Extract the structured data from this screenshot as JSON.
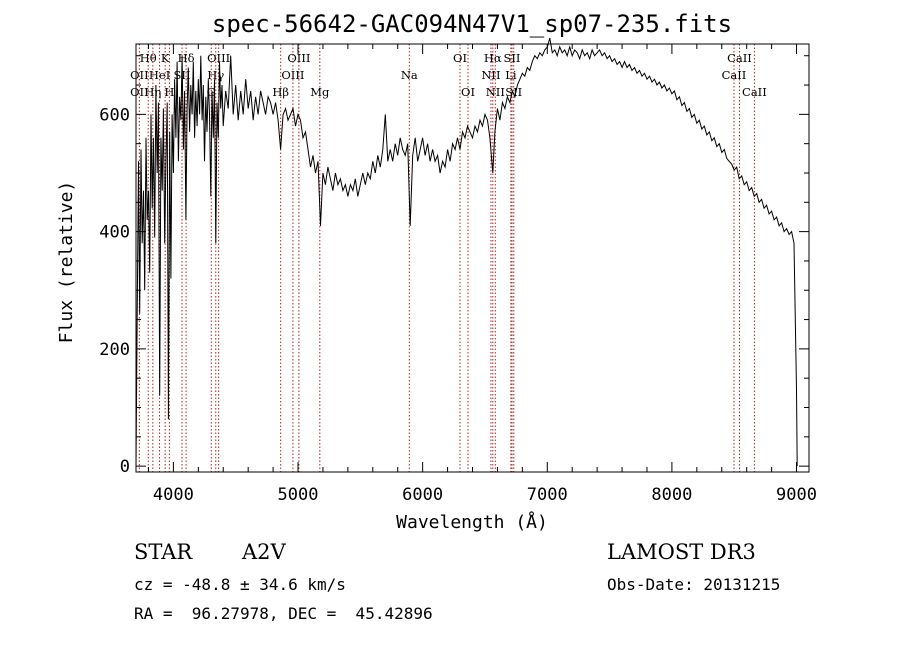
{
  "chart_data": {
    "type": "line",
    "title": "spec-56642-GAC094N47V1_sp07-235.fits",
    "xlabel": "Wavelength (Å)",
    "ylabel": "Flux (relative)",
    "xlim": [
      3700,
      9100
    ],
    "ylim": [
      -10,
      720
    ],
    "x_ticks": [
      4000,
      5000,
      6000,
      7000,
      8000,
      9000
    ],
    "y_ticks": [
      0,
      200,
      400,
      600
    ],
    "grid": false,
    "spectrum": [
      [
        3700,
        0
      ],
      [
        3710,
        260
      ],
      [
        3720,
        520
      ],
      [
        3730,
        260
      ],
      [
        3740,
        540
      ],
      [
        3750,
        380
      ],
      [
        3760,
        470
      ],
      [
        3770,
        300
      ],
      [
        3780,
        560
      ],
      [
        3790,
        420
      ],
      [
        3800,
        470
      ],
      [
        3810,
        330
      ],
      [
        3820,
        600
      ],
      [
        3830,
        440
      ],
      [
        3840,
        560
      ],
      [
        3850,
        390
      ],
      [
        3860,
        650
      ],
      [
        3870,
        500
      ],
      [
        3880,
        620
      ],
      [
        3890,
        120
      ],
      [
        3900,
        560
      ],
      [
        3910,
        470
      ],
      [
        3920,
        610
      ],
      [
        3930,
        380
      ],
      [
        3940,
        520
      ],
      [
        3950,
        620
      ],
      [
        3960,
        80
      ],
      [
        3970,
        570
      ],
      [
        3980,
        320
      ],
      [
        3990,
        600
      ],
      [
        4000,
        500
      ],
      [
        4010,
        660
      ],
      [
        4020,
        560
      ],
      [
        4030,
        690
      ],
      [
        4040,
        520
      ],
      [
        4050,
        630
      ],
      [
        4060,
        590
      ],
      [
        4070,
        700
      ],
      [
        4080,
        540
      ],
      [
        4090,
        640
      ],
      [
        4100,
        420
      ],
      [
        4110,
        610
      ],
      [
        4120,
        680
      ],
      [
        4130,
        570
      ],
      [
        4140,
        650
      ],
      [
        4150,
        600
      ],
      [
        4160,
        690
      ],
      [
        4170,
        560
      ],
      [
        4180,
        640
      ],
      [
        4190,
        580
      ],
      [
        4200,
        660
      ],
      [
        4210,
        600
      ],
      [
        4220,
        700
      ],
      [
        4230,
        590
      ],
      [
        4240,
        650
      ],
      [
        4250,
        520
      ],
      [
        4260,
        630
      ],
      [
        4270,
        570
      ],
      [
        4280,
        660
      ],
      [
        4290,
        600
      ],
      [
        4300,
        460
      ],
      [
        4310,
        640
      ],
      [
        4320,
        560
      ],
      [
        4330,
        660
      ],
      [
        4340,
        380
      ],
      [
        4350,
        620
      ],
      [
        4360,
        560
      ],
      [
        4370,
        690
      ],
      [
        4380,
        610
      ],
      [
        4390,
        650
      ],
      [
        4400,
        580
      ],
      [
        4420,
        640
      ],
      [
        4440,
        610
      ],
      [
        4460,
        700
      ],
      [
        4480,
        600
      ],
      [
        4500,
        650
      ],
      [
        4520,
        590
      ],
      [
        4540,
        640
      ],
      [
        4560,
        600
      ],
      [
        4580,
        660
      ],
      [
        4600,
        610
      ],
      [
        4620,
        640
      ],
      [
        4640,
        590
      ],
      [
        4660,
        630
      ],
      [
        4680,
        600
      ],
      [
        4700,
        640
      ],
      [
        4720,
        620
      ],
      [
        4740,
        600
      ],
      [
        4760,
        630
      ],
      [
        4780,
        620
      ],
      [
        4800,
        600
      ],
      [
        4820,
        620
      ],
      [
        4840,
        590
      ],
      [
        4860,
        540
      ],
      [
        4880,
        600
      ],
      [
        4900,
        610
      ],
      [
        4920,
        590
      ],
      [
        4940,
        600
      ],
      [
        4960,
        610
      ],
      [
        4980,
        580
      ],
      [
        5000,
        600
      ],
      [
        5020,
        590
      ],
      [
        5040,
        560
      ],
      [
        5060,
        570
      ],
      [
        5080,
        540
      ],
      [
        5100,
        510
      ],
      [
        5120,
        530
      ],
      [
        5140,
        500
      ],
      [
        5160,
        520
      ],
      [
        5180,
        410
      ],
      [
        5200,
        500
      ],
      [
        5220,
        480
      ],
      [
        5240,
        510
      ],
      [
        5260,
        490
      ],
      [
        5280,
        470
      ],
      [
        5300,
        500
      ],
      [
        5320,
        480
      ],
      [
        5340,
        490
      ],
      [
        5360,
        470
      ],
      [
        5380,
        480
      ],
      [
        5400,
        460
      ],
      [
        5420,
        480
      ],
      [
        5440,
        470
      ],
      [
        5460,
        490
      ],
      [
        5480,
        460
      ],
      [
        5500,
        480
      ],
      [
        5520,
        500
      ],
      [
        5540,
        480
      ],
      [
        5560,
        500
      ],
      [
        5580,
        490
      ],
      [
        5600,
        520
      ],
      [
        5620,
        500
      ],
      [
        5640,
        530
      ],
      [
        5660,
        510
      ],
      [
        5680,
        540
      ],
      [
        5700,
        600
      ],
      [
        5720,
        520
      ],
      [
        5740,
        540
      ],
      [
        5760,
        520
      ],
      [
        5780,
        550
      ],
      [
        5800,
        530
      ],
      [
        5820,
        560
      ],
      [
        5840,
        540
      ],
      [
        5860,
        530
      ],
      [
        5880,
        550
      ],
      [
        5900,
        410
      ],
      [
        5920,
        530
      ],
      [
        5940,
        560
      ],
      [
        5960,
        520
      ],
      [
        5980,
        540
      ],
      [
        6000,
        560
      ],
      [
        6020,
        530
      ],
      [
        6040,
        550
      ],
      [
        6060,
        520
      ],
      [
        6080,
        540
      ],
      [
        6100,
        520
      ],
      [
        6120,
        530
      ],
      [
        6140,
        500
      ],
      [
        6160,
        520
      ],
      [
        6180,
        510
      ],
      [
        6200,
        540
      ],
      [
        6220,
        520
      ],
      [
        6240,
        550
      ],
      [
        6260,
        540
      ],
      [
        6280,
        560
      ],
      [
        6300,
        540
      ],
      [
        6320,
        570
      ],
      [
        6340,
        560
      ],
      [
        6360,
        580
      ],
      [
        6380,
        570
      ],
      [
        6400,
        560
      ],
      [
        6420,
        580
      ],
      [
        6440,
        570
      ],
      [
        6460,
        590
      ],
      [
        6480,
        580
      ],
      [
        6500,
        600
      ],
      [
        6520,
        590
      ],
      [
        6540,
        560
      ],
      [
        6563,
        500
      ],
      [
        6580,
        570
      ],
      [
        6600,
        610
      ],
      [
        6620,
        590
      ],
      [
        6640,
        620
      ],
      [
        6660,
        610
      ],
      [
        6680,
        630
      ],
      [
        6700,
        620
      ],
      [
        6720,
        640
      ],
      [
        6740,
        630
      ],
      [
        6760,
        650
      ],
      [
        6780,
        660
      ],
      [
        6800,
        670
      ],
      [
        6820,
        665
      ],
      [
        6840,
        680
      ],
      [
        6860,
        675
      ],
      [
        6880,
        690
      ],
      [
        6900,
        700
      ],
      [
        6920,
        695
      ],
      [
        6940,
        705
      ],
      [
        6960,
        700
      ],
      [
        6980,
        710
      ],
      [
        7000,
        715
      ],
      [
        7020,
        730
      ],
      [
        7040,
        705
      ],
      [
        7060,
        710
      ],
      [
        7080,
        700
      ],
      [
        7100,
        715
      ],
      [
        7120,
        705
      ],
      [
        7140,
        710
      ],
      [
        7160,
        700
      ],
      [
        7180,
        715
      ],
      [
        7200,
        700
      ],
      [
        7220,
        710
      ],
      [
        7240,
        705
      ],
      [
        7260,
        695
      ],
      [
        7280,
        710
      ],
      [
        7300,
        700
      ],
      [
        7320,
        705
      ],
      [
        7340,
        695
      ],
      [
        7360,
        710
      ],
      [
        7380,
        700
      ],
      [
        7400,
        705
      ],
      [
        7420,
        710
      ],
      [
        7440,
        700
      ],
      [
        7460,
        705
      ],
      [
        7480,
        695
      ],
      [
        7500,
        700
      ],
      [
        7520,
        690
      ],
      [
        7540,
        695
      ],
      [
        7560,
        685
      ],
      [
        7580,
        690
      ],
      [
        7600,
        680
      ],
      [
        7620,
        690
      ],
      [
        7640,
        680
      ],
      [
        7660,
        685
      ],
      [
        7680,
        675
      ],
      [
        7700,
        680
      ],
      [
        7720,
        670
      ],
      [
        7740,
        675
      ],
      [
        7760,
        665
      ],
      [
        7780,
        670
      ],
      [
        7800,
        660
      ],
      [
        7820,
        665
      ],
      [
        7840,
        655
      ],
      [
        7860,
        660
      ],
      [
        7880,
        650
      ],
      [
        7900,
        655
      ],
      [
        7920,
        645
      ],
      [
        7940,
        650
      ],
      [
        7960,
        640
      ],
      [
        7980,
        645
      ],
      [
        8000,
        635
      ],
      [
        8020,
        640
      ],
      [
        8040,
        625
      ],
      [
        8060,
        630
      ],
      [
        8080,
        615
      ],
      [
        8100,
        620
      ],
      [
        8120,
        605
      ],
      [
        8140,
        610
      ],
      [
        8160,
        595
      ],
      [
        8180,
        600
      ],
      [
        8200,
        585
      ],
      [
        8220,
        590
      ],
      [
        8240,
        575
      ],
      [
        8260,
        580
      ],
      [
        8280,
        565
      ],
      [
        8300,
        570
      ],
      [
        8320,
        555
      ],
      [
        8340,
        560
      ],
      [
        8360,
        545
      ],
      [
        8380,
        550
      ],
      [
        8400,
        535
      ],
      [
        8420,
        540
      ],
      [
        8440,
        525
      ],
      [
        8460,
        520
      ],
      [
        8480,
        515
      ],
      [
        8500,
        505
      ],
      [
        8520,
        510
      ],
      [
        8540,
        490
      ],
      [
        8560,
        495
      ],
      [
        8580,
        480
      ],
      [
        8600,
        485
      ],
      [
        8620,
        470
      ],
      [
        8640,
        475
      ],
      [
        8660,
        460
      ],
      [
        8680,
        465
      ],
      [
        8700,
        450
      ],
      [
        8720,
        455
      ],
      [
        8740,
        440
      ],
      [
        8760,
        445
      ],
      [
        8780,
        430
      ],
      [
        8800,
        435
      ],
      [
        8820,
        420
      ],
      [
        8840,
        425
      ],
      [
        8860,
        410
      ],
      [
        8880,
        415
      ],
      [
        8900,
        400
      ],
      [
        8920,
        405
      ],
      [
        8940,
        395
      ],
      [
        8960,
        400
      ],
      [
        8980,
        380
      ],
      [
        8990,
        250
      ],
      [
        9000,
        130
      ],
      [
        9005,
        0
      ]
    ],
    "lines": [
      {
        "label": "Hθ",
        "wl": 3798,
        "row": 0
      },
      {
        "label": "OII",
        "wl": 3727,
        "row": 1
      },
      {
        "label": "OII",
        "wl": 3727,
        "row": 2
      },
      {
        "label": "HeI",
        "wl": 3889,
        "row": 1
      },
      {
        "label": "Hη",
        "wl": 3835,
        "row": 2
      },
      {
        "label": "K",
        "wl": 3934,
        "row": 0
      },
      {
        "label": "SII",
        "wl": 4069,
        "row": 1
      },
      {
        "label": "H",
        "wl": 3968,
        "row": 2
      },
      {
        "label": "Hδ",
        "wl": 4102,
        "row": 0
      },
      {
        "label": "OIII",
        "wl": 4363,
        "row": 0
      },
      {
        "label": "Hγ",
        "wl": 4340,
        "row": 1
      },
      {
        "label": "G",
        "wl": 4304,
        "row": 2
      },
      {
        "label": "Hβ",
        "wl": 4861,
        "row": 2
      },
      {
        "label": "OIII",
        "wl": 5007,
        "row": 0
      },
      {
        "label": "OIII",
        "wl": 4959,
        "row": 1
      },
      {
        "label": "Mg",
        "wl": 5175,
        "row": 2
      },
      {
        "label": "Na",
        "wl": 5893,
        "row": 1
      },
      {
        "label": "OI",
        "wl": 6300,
        "row": 0
      },
      {
        "label": "OI",
        "wl": 6364,
        "row": 2
      },
      {
        "label": "Hα",
        "wl": 6563,
        "row": 0
      },
      {
        "label": "SII",
        "wl": 6717,
        "row": 0
      },
      {
        "label": "NII",
        "wl": 6548,
        "row": 1
      },
      {
        "label": "Li",
        "wl": 6708,
        "row": 1
      },
      {
        "label": "NII",
        "wl": 6583,
        "row": 2
      },
      {
        "label": "SII",
        "wl": 6731,
        "row": 2
      },
      {
        "label": "CaII",
        "wl": 8542,
        "row": 0
      },
      {
        "label": "CaII",
        "wl": 8498,
        "row": 1
      },
      {
        "label": "CaII",
        "wl": 8662,
        "row": 2
      }
    ],
    "line_wavelengths": [
      3727,
      3798,
      3835,
      3889,
      3934,
      3968,
      4069,
      4102,
      4304,
      4340,
      4363,
      4861,
      4959,
      5007,
      5175,
      5893,
      6300,
      6364,
      6548,
      6563,
      6583,
      6708,
      6717,
      6731,
      8498,
      8542,
      8662
    ],
    "line_color": "#b22222",
    "trace_color": "#000000"
  },
  "info": {
    "object_class": "STAR",
    "subclass": "A2V",
    "survey": "LAMOST DR3",
    "cz": "cz = -48.8 ± 34.6 km/s",
    "obs_date": "Obs-Date: 20131215",
    "coords": "RA =  96.27978, DEC =  45.42896"
  }
}
